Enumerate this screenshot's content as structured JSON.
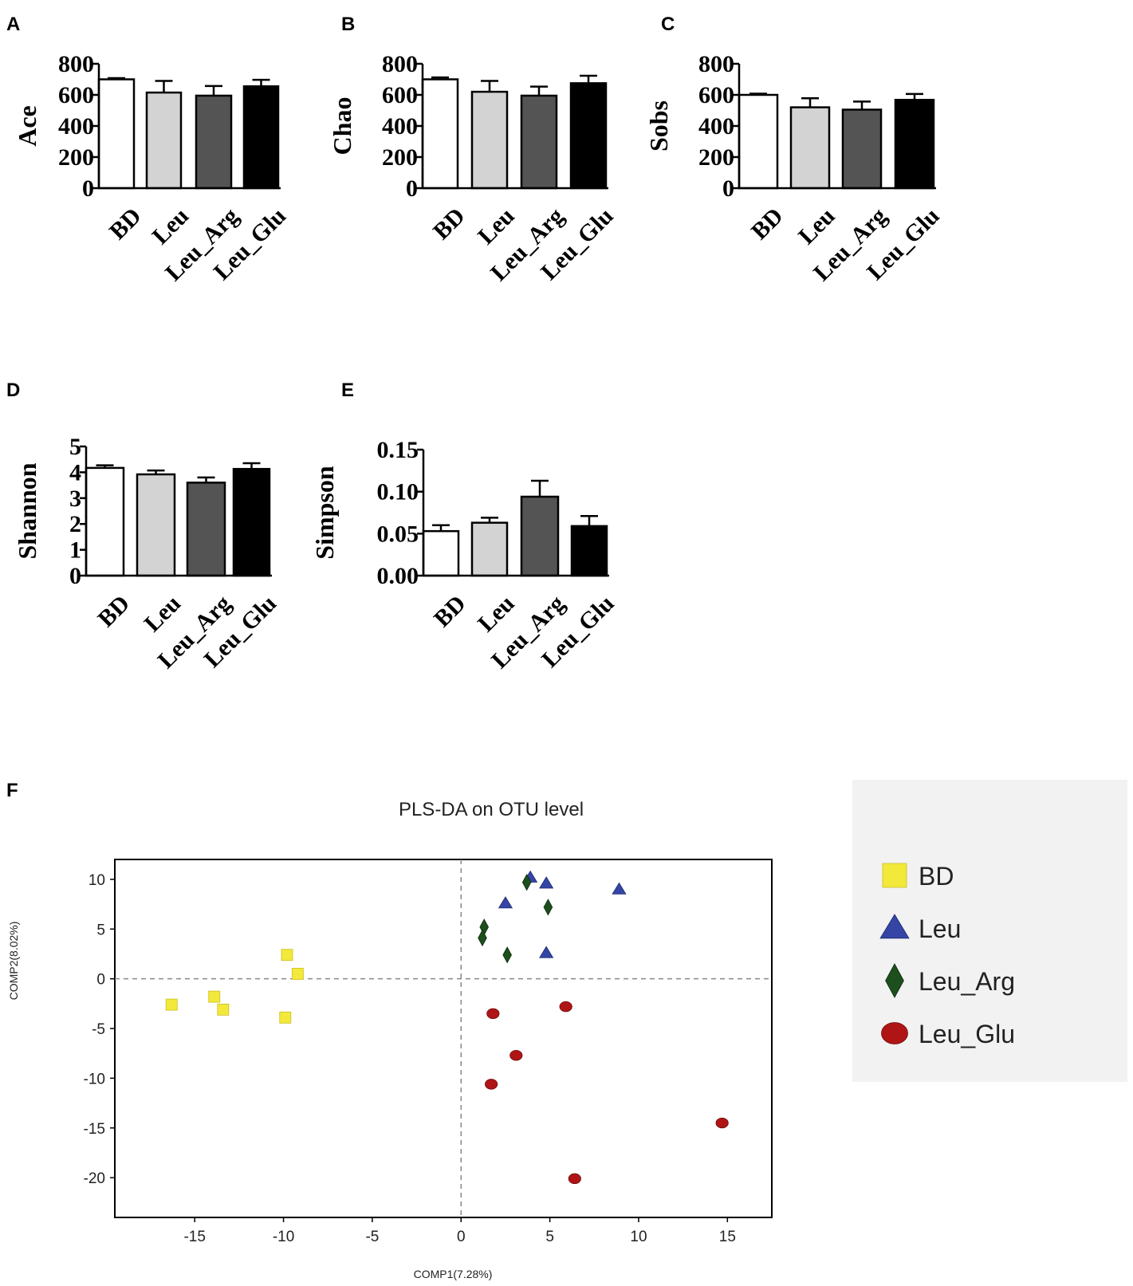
{
  "colors": {
    "BD": "#ffffff",
    "Leu": "#d3d3d3",
    "Leu_Arg": "#545454",
    "Leu_Glu": "#000000",
    "scatter_BD": "#f2e93a",
    "scatter_Leu": "#3445a6",
    "scatter_Leu_Arg": "#1d4f1d",
    "scatter_Leu_Glu": "#b01515"
  },
  "chart_data": [
    {
      "panel": "A",
      "type": "bar",
      "ylabel": "Ace",
      "ylim": [
        0,
        800
      ],
      "yticks": [
        0,
        200,
        400,
        600,
        800
      ],
      "categories": [
        "BD",
        "Leu",
        "Leu_Arg",
        "Leu_Glu"
      ],
      "values": [
        700,
        615,
        595,
        655
      ],
      "errors": [
        8,
        75,
        62,
        42
      ]
    },
    {
      "panel": "B",
      "type": "bar",
      "ylabel": "Chao",
      "ylim": [
        0,
        800
      ],
      "yticks": [
        0,
        200,
        400,
        600,
        800
      ],
      "categories": [
        "BD",
        "Leu",
        "Leu_Arg",
        "Leu_Glu"
      ],
      "values": [
        700,
        620,
        595,
        675
      ],
      "errors": [
        12,
        70,
        58,
        48
      ]
    },
    {
      "panel": "C",
      "type": "bar",
      "ylabel": "Sobs",
      "ylim": [
        0,
        800
      ],
      "yticks": [
        0,
        200,
        400,
        600,
        800
      ],
      "categories": [
        "BD",
        "Leu",
        "Leu_Arg",
        "Leu_Glu"
      ],
      "values": [
        600,
        520,
        505,
        568
      ],
      "errors": [
        8,
        58,
        52,
        38
      ]
    },
    {
      "panel": "D",
      "type": "bar",
      "ylabel": "Shannon",
      "ylim": [
        0,
        5
      ],
      "yticks": [
        0,
        1,
        2,
        3,
        4,
        5
      ],
      "categories": [
        "BD",
        "Leu",
        "Leu_Arg",
        "Leu_Glu"
      ],
      "values": [
        4.17,
        3.92,
        3.6,
        4.13
      ],
      "errors": [
        0.1,
        0.15,
        0.2,
        0.22
      ]
    },
    {
      "panel": "E",
      "type": "bar",
      "ylabel": "Simpson",
      "ylim": [
        0,
        0.15
      ],
      "yticks": [
        "0.00",
        "0.05",
        "0.10",
        "0.15"
      ],
      "categories": [
        "BD",
        "Leu",
        "Leu_Arg",
        "Leu_Glu"
      ],
      "values": [
        0.053,
        0.063,
        0.094,
        0.059
      ],
      "errors": [
        0.007,
        0.006,
        0.019,
        0.012
      ]
    },
    {
      "panel": "F",
      "type": "scatter",
      "title": "PLS-DA on OTU level",
      "xlabel": "COMP1(7.28%)",
      "ylabel": "COMP2(8.02%)",
      "xlim": [
        -19.5,
        17.5
      ],
      "ylim": [
        -24,
        12
      ],
      "xticks": [
        -15,
        -10,
        -5,
        0,
        5,
        10,
        15
      ],
      "yticks": [
        10,
        5,
        0,
        -5,
        -10,
        -15,
        -20
      ],
      "series": [
        {
          "name": "BD",
          "marker": "square",
          "points": [
            [
              -16.3,
              -2.6
            ],
            [
              -13.9,
              -1.8
            ],
            [
              -13.4,
              -3.1
            ],
            [
              -9.8,
              2.4
            ],
            [
              -9.2,
              0.5
            ],
            [
              -9.9,
              -3.9
            ]
          ]
        },
        {
          "name": "Leu",
          "marker": "triangle",
          "points": [
            [
              2.5,
              7.6
            ],
            [
              3.9,
              10.2
            ],
            [
              4.8,
              9.6
            ],
            [
              8.9,
              9.0
            ],
            [
              4.8,
              2.6
            ]
          ]
        },
        {
          "name": "Leu_Arg",
          "marker": "diamond",
          "points": [
            [
              3.7,
              9.7
            ],
            [
              4.9,
              7.2
            ],
            [
              1.3,
              5.2
            ],
            [
              1.2,
              4.1
            ],
            [
              2.6,
              2.4
            ]
          ]
        },
        {
          "name": "Leu_Glu",
          "marker": "circle",
          "points": [
            [
              1.8,
              -3.5
            ],
            [
              5.9,
              -2.8
            ],
            [
              3.1,
              -7.7
            ],
            [
              1.7,
              -10.6
            ],
            [
              14.7,
              -14.5
            ],
            [
              6.4,
              -20.1
            ]
          ]
        }
      ]
    }
  ],
  "legend": [
    "BD",
    "Leu",
    "Leu_Arg",
    "Leu_Glu"
  ]
}
